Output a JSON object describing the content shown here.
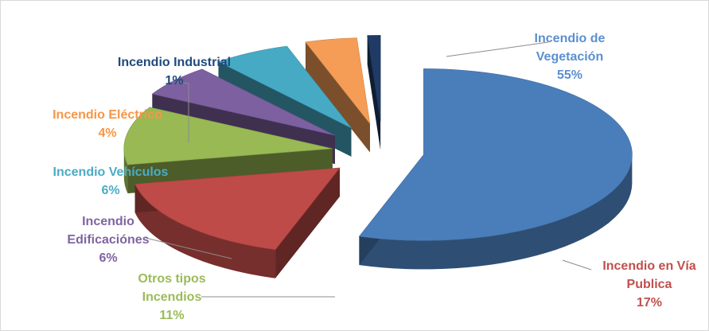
{
  "chart_data": {
    "type": "pie",
    "title": "",
    "style": "3d-exploded",
    "unit": "%",
    "legend": "none",
    "slices": [
      {
        "key": "vegetacion",
        "label_lines": [
          "Incendio de",
          "Vegetación"
        ],
        "value": 55,
        "pct_label": "55%",
        "color": "#4a7ebb",
        "label_color": "#5b8fd0"
      },
      {
        "key": "via",
        "label_lines": [
          "Incendio en Vía",
          "Publica"
        ],
        "value": 17,
        "pct_label": "17%",
        "color": "#be4b48",
        "label_color": "#c0504d"
      },
      {
        "key": "otros",
        "label_lines": [
          "Otros tipos",
          "Incendios"
        ],
        "value": 11,
        "pct_label": "11%",
        "color": "#98b954",
        "label_color": "#9bbb59"
      },
      {
        "key": "edificaciones",
        "label_lines": [
          "Incendio",
          "Edificaciónes"
        ],
        "value": 6,
        "pct_label": "6%",
        "color": "#7d60a0",
        "label_color": "#8064a2"
      },
      {
        "key": "vehiculos",
        "label_lines": [
          "Incendio Vehículos"
        ],
        "value": 6,
        "pct_label": "6%",
        "color": "#46aac5",
        "label_color": "#4bacc6"
      },
      {
        "key": "electrico",
        "label_lines": [
          "Incendio Eléctrico"
        ],
        "value": 4,
        "pct_label": "4%",
        "color": "#f59d56",
        "label_color": "#f79646"
      },
      {
        "key": "industrial",
        "label_lines": [
          "Incendio Industrial"
        ],
        "value": 1,
        "pct_label": "1%",
        "color": "#1f3a64",
        "label_color": "#1f497d"
      }
    ]
  }
}
